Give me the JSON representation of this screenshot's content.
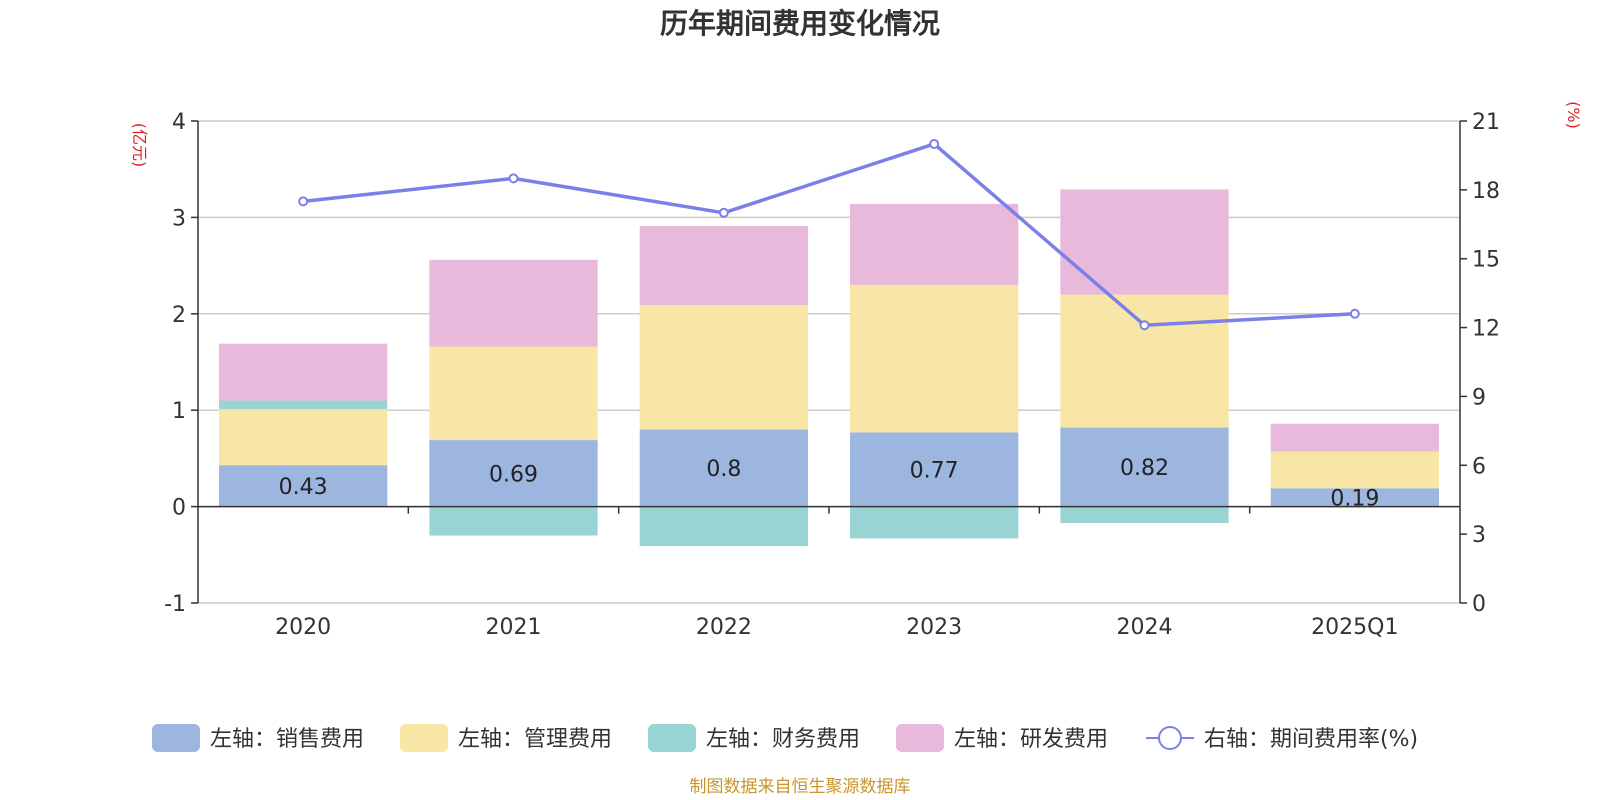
{
  "chart_data": {
    "type": "bar",
    "title": "历年期间费用变化情况",
    "categories": [
      "2020",
      "2021",
      "2022",
      "2023",
      "2024",
      "2025Q1"
    ],
    "left_axis": {
      "unit_label": "(亿元)",
      "ylim": [
        -1,
        4
      ],
      "ticks": [
        "-1",
        "0",
        "1",
        "2",
        "3",
        "4"
      ]
    },
    "right_axis": {
      "unit_label": "(%)",
      "ylim": [
        0,
        21
      ],
      "ticks": [
        "0",
        "3",
        "6",
        "9",
        "12",
        "15",
        "18",
        "21"
      ]
    },
    "series": [
      {
        "name": "左轴：销售费用",
        "kind": "bar",
        "axis": "left",
        "color": "#9db6e0",
        "values": [
          0.43,
          0.69,
          0.8,
          0.77,
          0.82,
          0.19
        ],
        "labels": [
          "0.43",
          "0.69",
          "0.8",
          "0.77",
          "0.82",
          "0.19"
        ]
      },
      {
        "name": "左轴：管理费用",
        "kind": "bar",
        "axis": "left",
        "color": "#f8e6a6",
        "values": [
          0.58,
          0.97,
          1.29,
          1.53,
          1.38,
          0.38
        ]
      },
      {
        "name": "左轴：财务费用",
        "kind": "bar",
        "axis": "left",
        "color": "#98d4d4",
        "values": [
          0.09,
          -0.3,
          -0.41,
          -0.33,
          -0.17,
          0
        ]
      },
      {
        "name": "左轴：研发费用",
        "kind": "bar",
        "axis": "left",
        "color": "#e8b9da",
        "values": [
          0.59,
          0.9,
          0.82,
          0.84,
          1.09,
          0.29
        ]
      },
      {
        "name": "右轴：期间费用率(%)",
        "kind": "line",
        "axis": "right",
        "color": "#7b80e8",
        "values": [
          17.5,
          18.5,
          17.0,
          20.0,
          12.1,
          12.6
        ]
      }
    ],
    "grid": true,
    "legend_position": "bottom"
  },
  "source_text": "制图数据来自恒生聚源数据库"
}
